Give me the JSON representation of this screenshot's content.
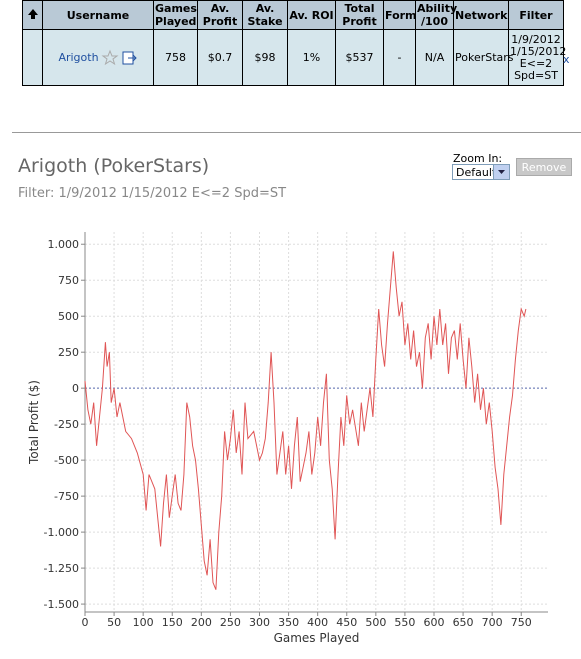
{
  "table": {
    "headers": [
      "Username",
      "Games Played",
      "Av. Profit",
      "Av. Stake",
      "Av. ROI",
      "Total Profit",
      "Form",
      "Ability /100",
      "Network",
      "Filter"
    ],
    "rows": [
      [
        "Arigoth",
        "758",
        "$0.7",
        "$98",
        "1%",
        "$537",
        "-",
        "N/A",
        "PokerStars",
        "1/9/2012 1/15/2012 E<=2 Spd=ST"
      ]
    ]
  },
  "remove_link": "x",
  "zoom": {
    "label": "Zoom In:",
    "selected": "Default"
  },
  "button": "Remove",
  "chart_data": {
    "type": "line",
    "title": "Arigoth (PokerStars)",
    "subtitle": "Filter: 1/9/2012 1/15/2012 E<=2 Spd=ST",
    "x_label": "Games Played",
    "y_label": "Total Profit ($)",
    "color": "#e05555",
    "x": [
      0,
      5,
      10,
      15,
      20,
      25,
      30,
      35,
      38,
      42,
      45,
      50,
      55,
      60,
      70,
      80,
      90,
      100,
      105,
      110,
      120,
      125,
      130,
      135,
      140,
      145,
      150,
      155,
      160,
      165,
      170,
      175,
      180,
      185,
      190,
      195,
      200,
      205,
      210,
      215,
      220,
      225,
      230,
      235,
      240,
      245,
      250,
      255,
      260,
      265,
      270,
      275,
      280,
      290,
      300,
      305,
      310,
      315,
      320,
      325,
      330,
      335,
      340,
      345,
      350,
      355,
      360,
      365,
      370,
      375,
      380,
      385,
      390,
      395,
      400,
      405,
      410,
      415,
      420,
      425,
      430,
      435,
      440,
      445,
      450,
      455,
      460,
      470,
      475,
      480,
      490,
      495,
      500,
      505,
      510,
      515,
      520,
      525,
      530,
      535,
      540,
      545,
      550,
      555,
      560,
      565,
      570,
      575,
      580,
      585,
      590,
      595,
      600,
      605,
      610,
      615,
      620,
      625,
      630,
      635,
      640,
      645,
      650,
      655,
      660,
      665,
      670,
      675,
      680,
      685,
      690,
      695,
      700,
      705,
      710,
      715,
      720,
      725,
      730,
      735,
      740,
      745,
      750,
      755,
      758
    ],
    "values": [
      50,
      -150,
      -250,
      -100,
      -400,
      -200,
      0,
      320,
      150,
      250,
      -100,
      0,
      -200,
      -100,
      -300,
      -350,
      -450,
      -600,
      -850,
      -600,
      -700,
      -900,
      -1100,
      -800,
      -600,
      -900,
      -750,
      -600,
      -800,
      -850,
      -600,
      -100,
      -200,
      -400,
      -500,
      -700,
      -950,
      -1200,
      -1300,
      -1050,
      -1350,
      -1400,
      -1000,
      -750,
      -300,
      -500,
      -350,
      -150,
      -450,
      -300,
      -600,
      -100,
      -350,
      -300,
      -500,
      -450,
      -350,
      -100,
      250,
      -100,
      -600,
      -450,
      -300,
      -600,
      -400,
      -700,
      -400,
      -200,
      -650,
      -550,
      -450,
      -300,
      -600,
      -450,
      -200,
      -400,
      -100,
      100,
      -500,
      -700,
      -1050,
      -600,
      -200,
      -400,
      -50,
      -250,
      -150,
      -400,
      -100,
      -300,
      0,
      -200,
      200,
      550,
      300,
      150,
      450,
      700,
      950,
      700,
      500,
      600,
      300,
      450,
      200,
      400,
      150,
      250,
      0,
      350,
      450,
      200,
      500,
      300,
      550,
      300,
      450,
      100,
      350,
      400,
      200,
      450,
      200,
      0,
      350,
      150,
      -100,
      100,
      -150,
      0,
      -250,
      -100,
      -300,
      -550,
      -700,
      -950,
      -600,
      -400,
      -200,
      -50,
      200,
      400,
      550,
      500,
      550
    ],
    "xlim": [
      0,
      796
    ],
    "xticks": [
      0,
      50,
      100,
      150,
      200,
      250,
      300,
      350,
      400,
      450,
      500,
      550,
      600,
      650,
      700,
      750
    ],
    "ylim": [
      -1555,
      1085
    ],
    "yticks": [
      {
        "value": 1000,
        "label": "1.000"
      },
      750,
      500,
      250,
      0,
      -250,
      -500,
      -750,
      {
        "value": -1000,
        "label": "-1.000"
      },
      {
        "value": -1250,
        "label": "-1.250"
      },
      {
        "value": -1500,
        "label": "-1.500"
      }
    ],
    "grid": true
  }
}
